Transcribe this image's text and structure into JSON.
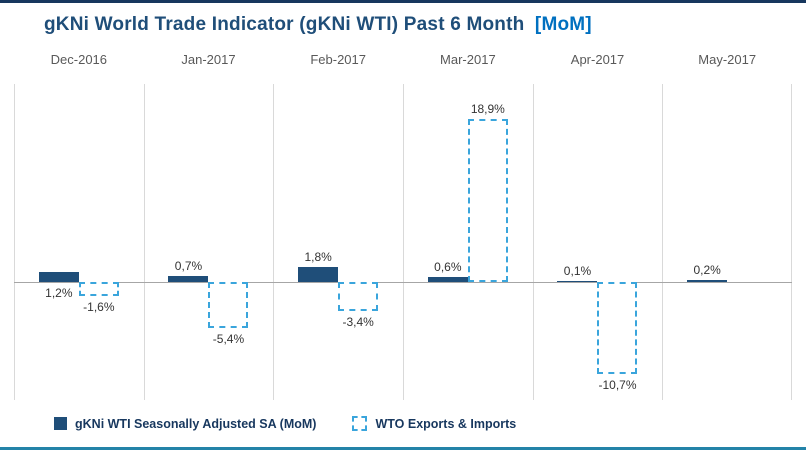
{
  "title": {
    "main": "gKNi World Trade Indicator (gKNi WTI) Past 6 Month",
    "suffix": "[MoM]"
  },
  "colors": {
    "solid_bar": "#1F4E79",
    "dashed_bar": "#3AA5DC",
    "title": "#1F4E79",
    "title_suffix": "#0070C0",
    "axis_line": "#A6A6A6",
    "separator_line": "#D9D9D9",
    "top_rule": "#17375E",
    "bottom_rule": "#2383A8"
  },
  "chart_data": {
    "type": "bar",
    "title": "gKNi World Trade Indicator (gKNi WTI) Past 6 Month [MoM]",
    "categories": [
      "Dec-2016",
      "Jan-2017",
      "Feb-2017",
      "Mar-2017",
      "Apr-2017",
      "May-2017"
    ],
    "series": [
      {
        "name": "gKNi WTI Seasonally Adjusted SA (MoM)",
        "style": "solid",
        "color": "#1F4E79",
        "values": [
          1.2,
          0.7,
          1.8,
          0.6,
          0.1,
          0.2
        ],
        "value_labels": [
          "1,2%",
          "0,7%",
          "1,8%",
          "0,6%",
          "0,1%",
          "0,2%"
        ],
        "label_positions": [
          "below-axis",
          "above",
          "above",
          "above",
          "above",
          "above"
        ]
      },
      {
        "name": "WTO Exports & Imports",
        "style": "dashed",
        "color": "#3AA5DC",
        "values": [
          -1.6,
          -5.4,
          -3.4,
          18.9,
          -10.7,
          null
        ],
        "value_labels": [
          "-1,6%",
          "-5,4%",
          "-3,4%",
          "18,9%",
          "-10,7%",
          null
        ]
      }
    ],
    "xlabel": "",
    "ylabel": "",
    "ylim": [
      -13,
      21
    ],
    "grid": "vertical-panel-separators",
    "legend_position": "bottom-left",
    "number_format": "comma-decimal percent"
  }
}
